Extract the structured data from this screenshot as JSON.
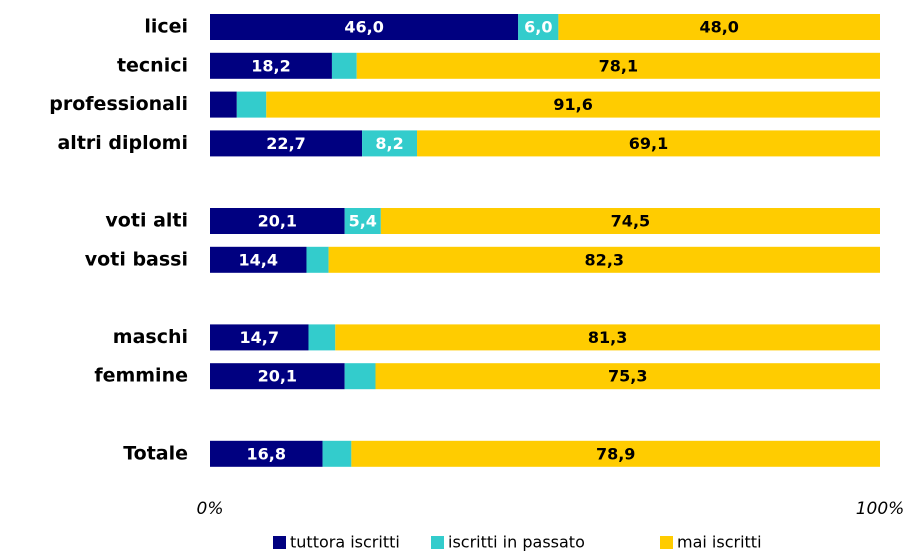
{
  "chart_data": {
    "type": "stacked-bar-horizontal",
    "categories": [
      "licei",
      "tecnici",
      "professionali",
      "altri diplomi",
      null,
      "voti alti",
      "voti bassi",
      null,
      "maschi",
      "femmine",
      null,
      "Totale"
    ],
    "series": [
      {
        "name": "tuttora iscritti",
        "color": "#000080",
        "values": [
          46.0,
          18.2,
          4.0,
          22.7,
          null,
          20.1,
          14.4,
          null,
          14.7,
          20.1,
          null,
          16.8
        ],
        "value_labels": [
          "46,0",
          "18,2",
          null,
          "22,7",
          null,
          "20,1",
          "14,4",
          null,
          "14,7",
          "20,1",
          null,
          "16,8"
        ]
      },
      {
        "name": "iscritti in passato",
        "color": "#33cccc",
        "values": [
          6.0,
          3.7,
          4.4,
          8.2,
          null,
          5.4,
          3.3,
          null,
          4.0,
          4.6,
          null,
          4.3
        ],
        "value_labels": [
          "6,0",
          null,
          null,
          "8,2",
          null,
          "5,4",
          null,
          null,
          null,
          null,
          null,
          null
        ]
      },
      {
        "name": "mai iscritti",
        "color": "#ffcc00",
        "values": [
          48.0,
          78.1,
          91.6,
          69.1,
          null,
          74.5,
          82.3,
          null,
          81.3,
          75.3,
          null,
          78.9
        ],
        "value_labels": [
          "48,0",
          "78,1",
          "91,6",
          "69,1",
          null,
          "74,5",
          "82,3",
          null,
          "81,3",
          "75,3",
          null,
          "78,9"
        ]
      }
    ],
    "xlim": [
      0,
      100
    ],
    "xticks": [
      {
        "value": 0,
        "label": "0%"
      },
      {
        "value": 100,
        "label": "100%"
      }
    ],
    "grid": false,
    "legend": "bottom"
  }
}
